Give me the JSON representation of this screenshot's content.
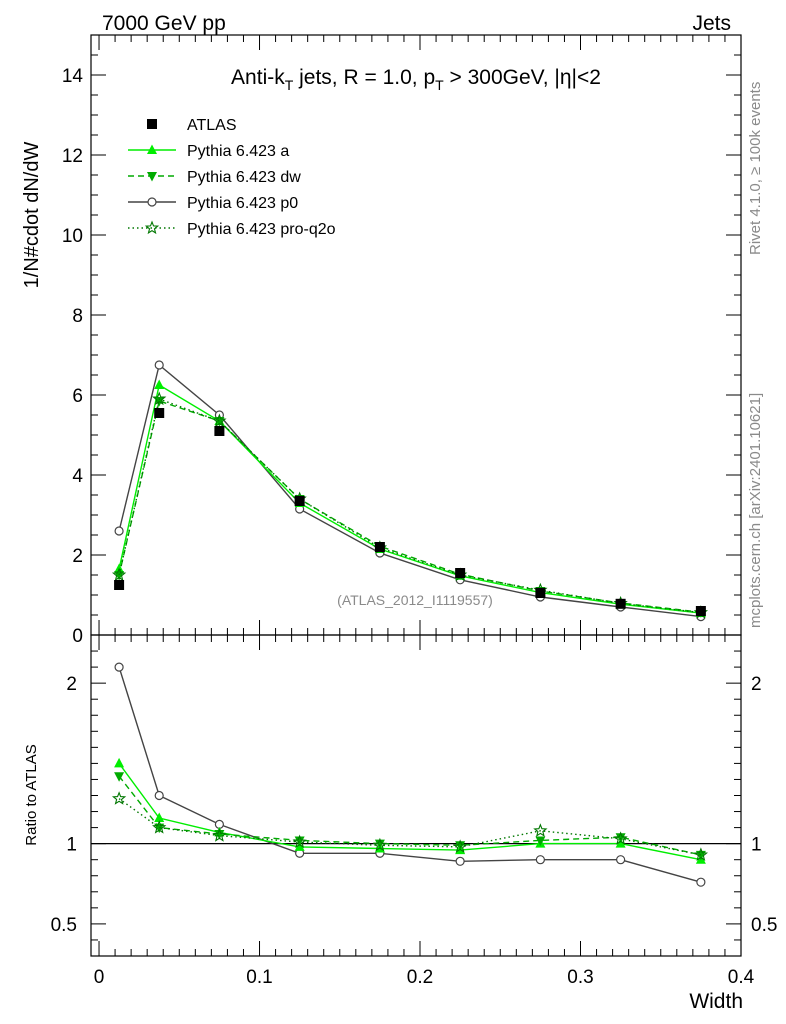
{
  "header": {
    "left": "7000 GeV pp",
    "right": "Jets"
  },
  "side_text": {
    "rivet": "Rivet 4.1.0, ≥ 100k events",
    "mcplots": "mcplots.cern.ch [arXiv:2401.10621]"
  },
  "colors": {
    "atlas": "#000000",
    "pythia_a": "#00ee00",
    "pythia_dw": "#00aa00",
    "pythia_p0": "#444444",
    "pythia_proq2o": "#007700"
  },
  "chart_data": [
    {
      "type": "line",
      "title_parts": {
        "prefix": "Anti-k",
        "sub1": "T",
        "mid": " jets, R = 1.0, p",
        "sub2": "T",
        "suffix": " > 300GeV, |η|<2"
      },
      "ylabel": "1/N#cdot dN/dW",
      "xlabel": "",
      "ylim": [
        0,
        15
      ],
      "xlim": [
        -0.005,
        0.4
      ],
      "yticks": [
        0,
        2,
        4,
        6,
        8,
        10,
        12,
        14
      ],
      "watermark": "(ATLAS_2012_I1119557)",
      "x": [
        0.0125,
        0.0375,
        0.075,
        0.125,
        0.175,
        0.225,
        0.275,
        0.325,
        0.375
      ],
      "series": [
        {
          "name": "ATLAS",
          "marker": "square",
          "line": "none",
          "values": [
            1.25,
            5.55,
            5.1,
            3.35,
            2.2,
            1.55,
            1.05,
            0.78,
            0.6
          ]
        },
        {
          "name": "Pythia 6.423 a",
          "marker": "triangle-up",
          "line": "solid",
          "values": [
            1.65,
            6.25,
            5.35,
            3.3,
            2.15,
            1.48,
            1.06,
            0.77,
            0.55
          ]
        },
        {
          "name": "Pythia 6.423 dw",
          "marker": "triangle-down",
          "line": "dashed",
          "values": [
            1.5,
            5.85,
            5.35,
            3.4,
            2.22,
            1.52,
            1.1,
            0.8,
            0.57
          ]
        },
        {
          "name": "Pythia 6.423 p0",
          "marker": "circle-open",
          "line": "solid",
          "values": [
            2.6,
            6.75,
            5.5,
            3.15,
            2.05,
            1.38,
            0.95,
            0.7,
            0.46
          ]
        },
        {
          "name": "Pythia 6.423 pro-q2o",
          "marker": "star-open",
          "line": "dotted",
          "values": [
            1.5,
            5.9,
            5.35,
            3.4,
            2.18,
            1.5,
            1.12,
            0.79,
            0.56
          ]
        }
      ]
    },
    {
      "type": "line",
      "ylabel": "Ratio to ATLAS",
      "xlabel": "Width",
      "ylim": [
        0.3,
        2.3
      ],
      "xlim": [
        -0.005,
        0.4
      ],
      "yticks": [
        0.5,
        1,
        2
      ],
      "ytick_labels": [
        "0.5",
        "1",
        "2"
      ],
      "xticks": [
        0,
        0.1,
        0.2,
        0.3,
        0.4
      ],
      "xtick_labels": [
        "0",
        "0.1",
        "0.2",
        "0.3",
        "0.4"
      ],
      "x": [
        0.0125,
        0.0375,
        0.075,
        0.125,
        0.175,
        0.225,
        0.275,
        0.325,
        0.375
      ],
      "series": [
        {
          "name": "Pythia 6.423 a",
          "values": [
            1.5,
            1.16,
            1.07,
            0.98,
            0.97,
            0.96,
            1.0,
            1.0,
            0.9
          ]
        },
        {
          "name": "Pythia 6.423 dw",
          "values": [
            1.42,
            1.1,
            1.06,
            1.02,
            1.0,
            0.99,
            1.02,
            1.04,
            0.93
          ]
        },
        {
          "name": "Pythia 6.423 p0",
          "values": [
            2.1,
            1.3,
            1.12,
            0.94,
            0.94,
            0.89,
            0.9,
            0.9,
            0.76
          ]
        },
        {
          "name": "Pythia 6.423 pro-q2o",
          "values": [
            1.28,
            1.1,
            1.05,
            1.01,
            0.99,
            0.98,
            1.08,
            1.03,
            0.93
          ]
        }
      ]
    }
  ]
}
